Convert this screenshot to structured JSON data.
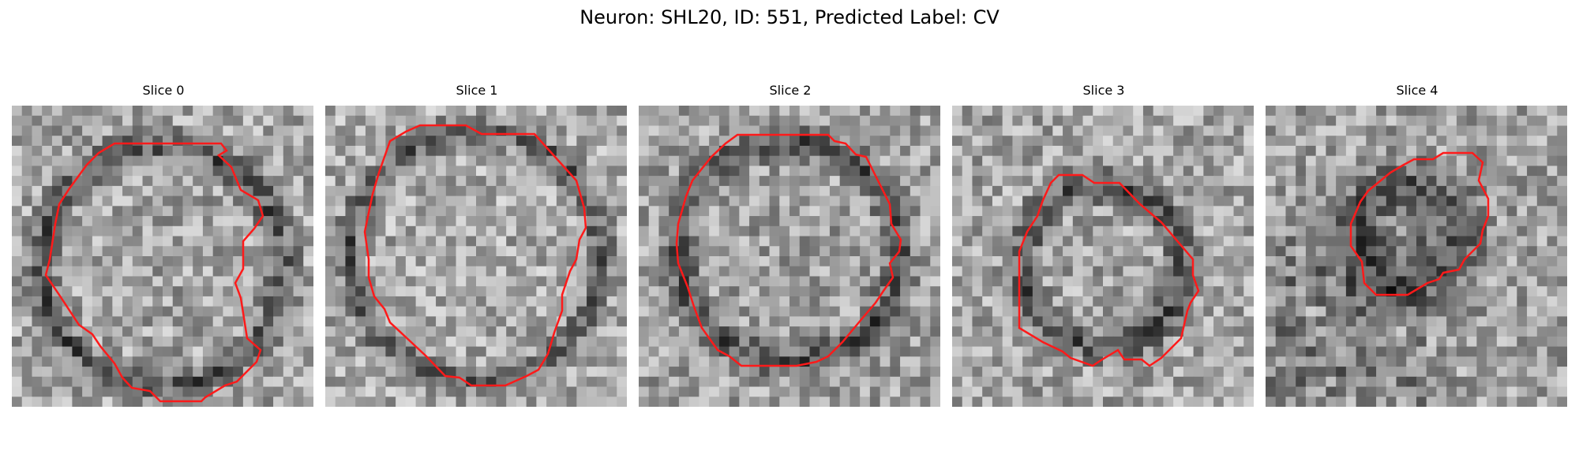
{
  "figure": {
    "title": "Neuron: SHL20, ID: 551, Predicted Label: CV",
    "contour_color": "#ff1a1a"
  },
  "panels": [
    {
      "title": "Slice 0"
    },
    {
      "title": "Slice 1"
    },
    {
      "title": "Slice 2"
    },
    {
      "title": "Slice 3"
    },
    {
      "title": "Slice 4"
    }
  ]
}
